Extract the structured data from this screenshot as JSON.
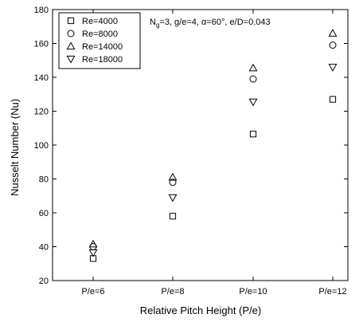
{
  "chart_data": {
    "type": "scatter",
    "xlabel": "Relative Pitch Height (P/e)",
    "ylabel": "Nusselt Number (Nu)",
    "categories": [
      "P/e=6",
      "P/e=8",
      "P/e=10",
      "P/e=12"
    ],
    "ylim": [
      20,
      180
    ],
    "yticks": [
      20,
      40,
      60,
      80,
      100,
      120,
      140,
      160,
      180
    ],
    "annotation": {
      "part1": "N",
      "sub": "g",
      "part2": "=3, g/e=4, α=60°, e/D=0.043"
    },
    "legend_position": "top-left",
    "series": [
      {
        "name": "Re=4000",
        "marker": "square",
        "values": [
          33,
          58,
          106.5,
          127
        ]
      },
      {
        "name": "Re=8000",
        "marker": "circle",
        "values": [
          40,
          78,
          139,
          159
        ]
      },
      {
        "name": "Re=14000",
        "marker": "triangle-up",
        "values": [
          41.5,
          81,
          145.5,
          166
        ]
      },
      {
        "name": "Re=18000",
        "marker": "triangle-down",
        "values": [
          36.5,
          69,
          125.5,
          146
        ]
      }
    ]
  }
}
